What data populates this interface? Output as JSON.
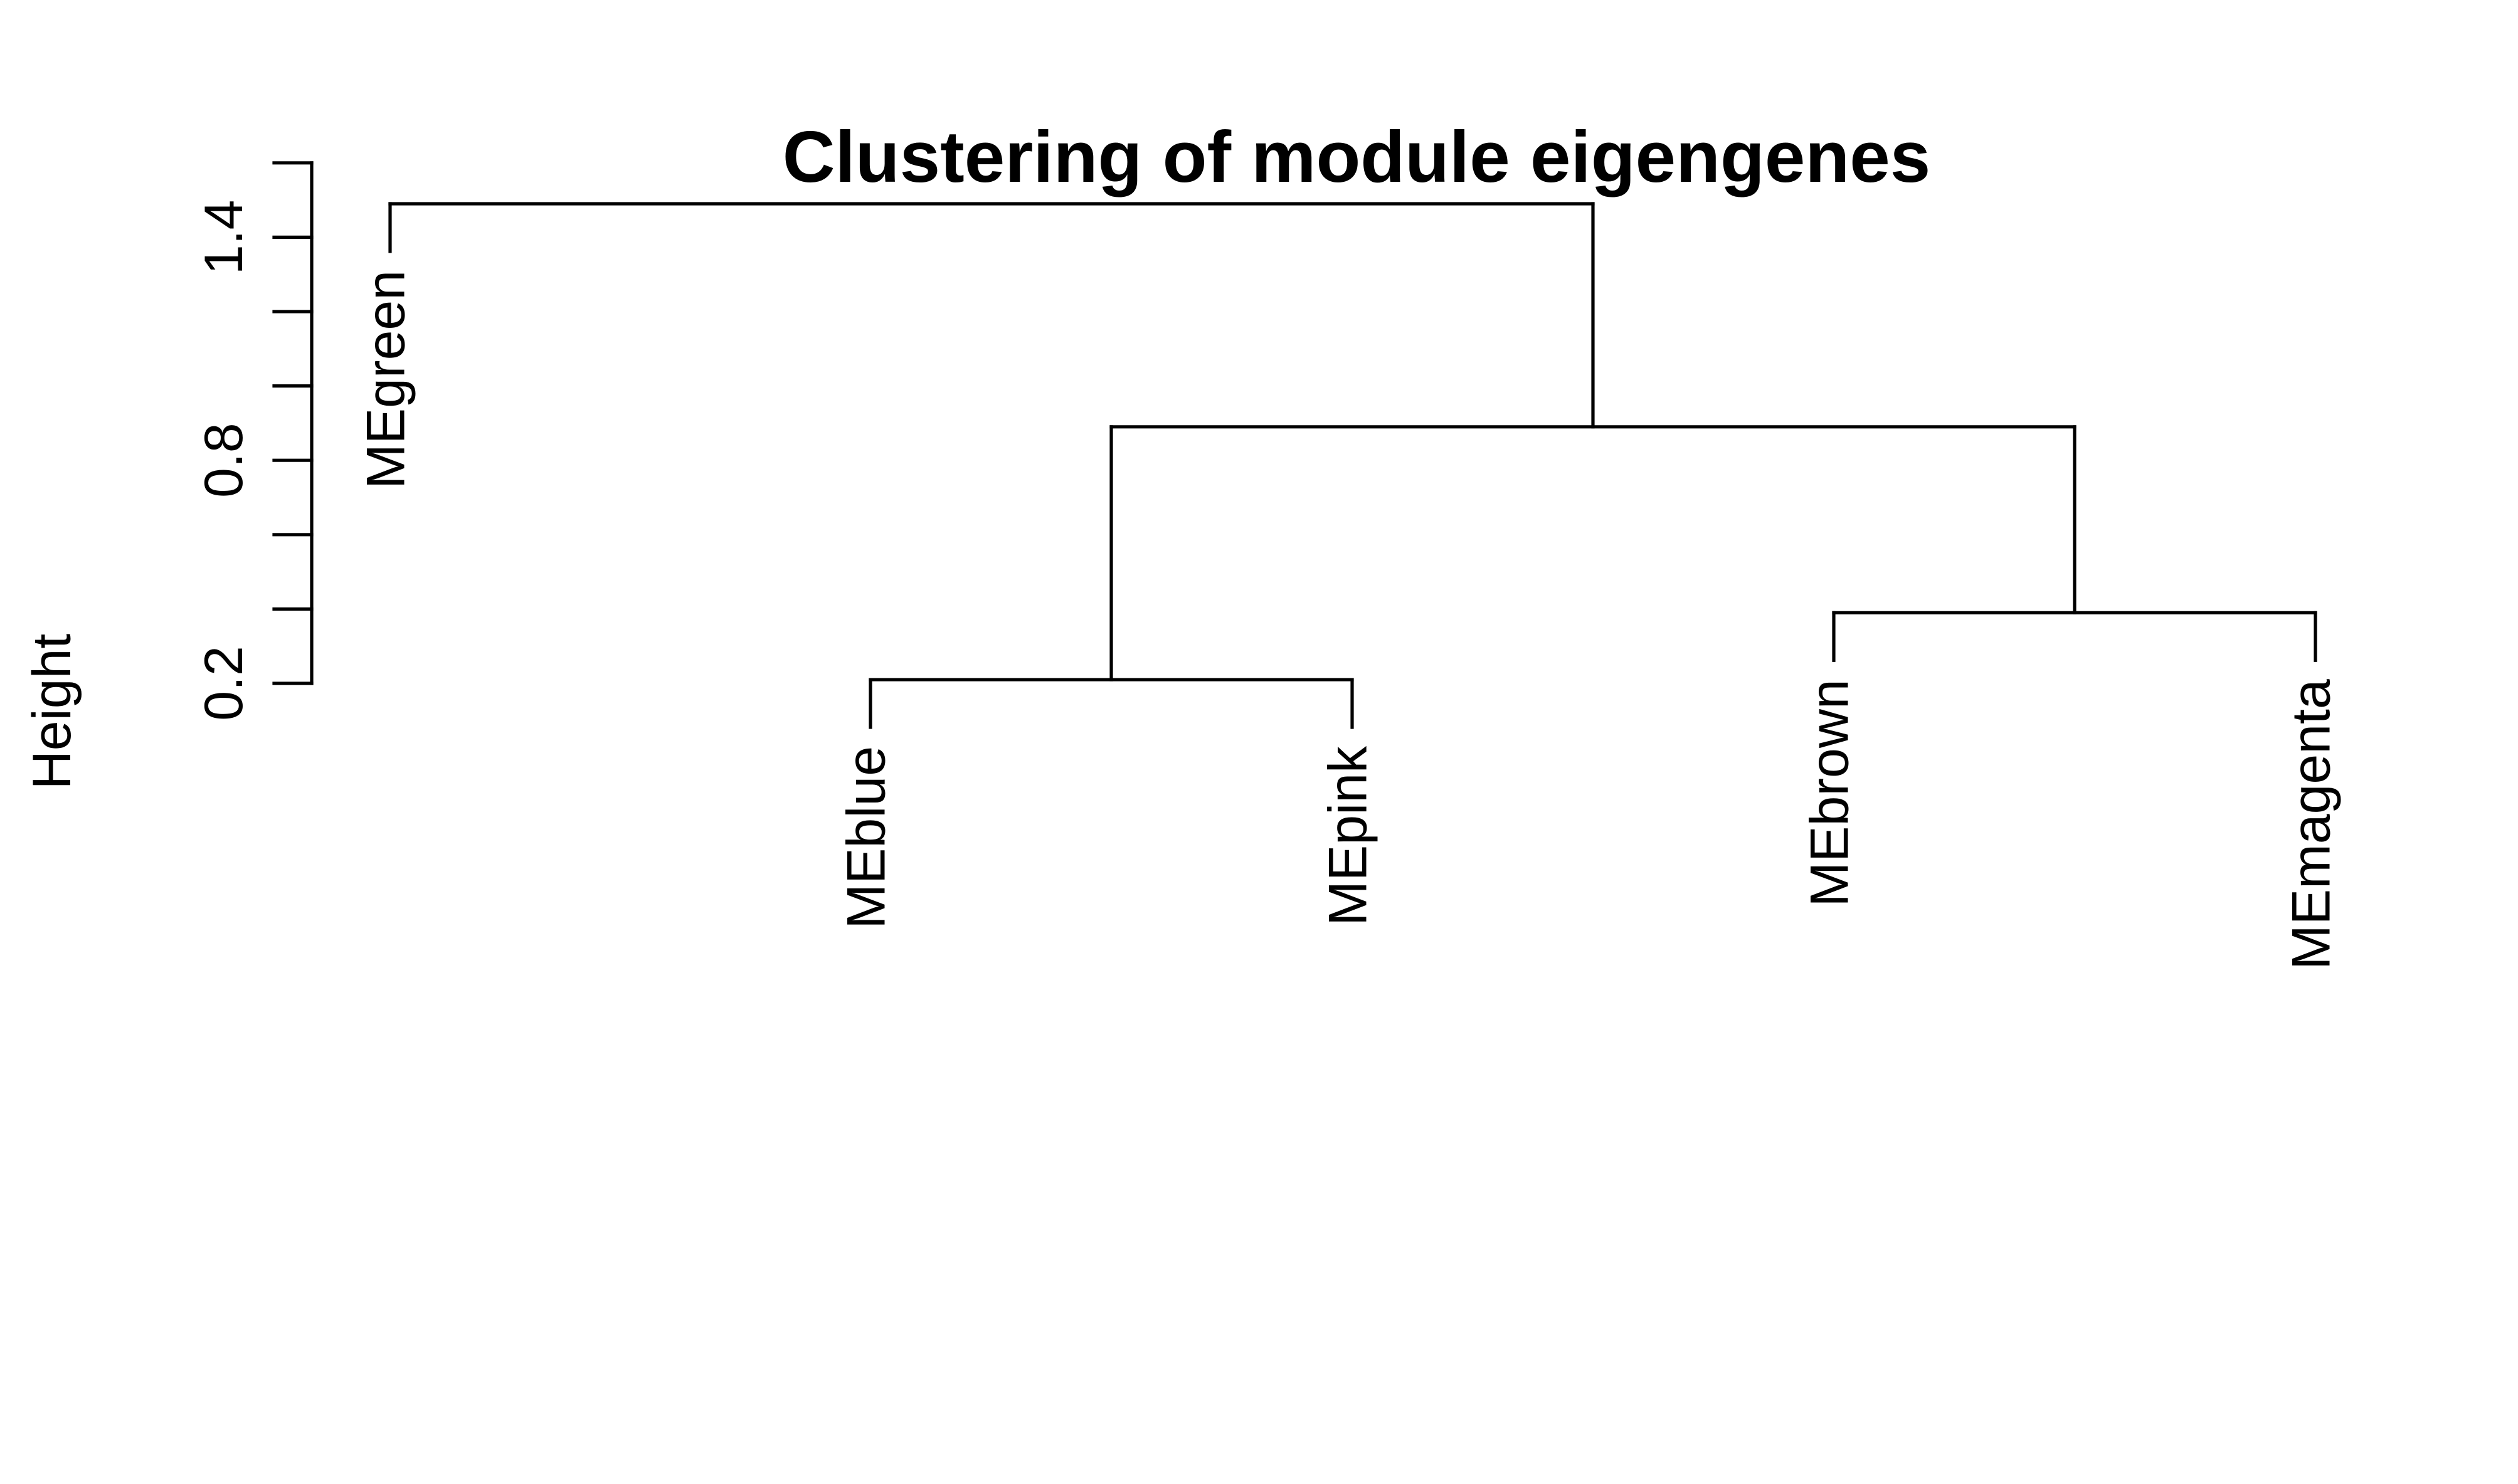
{
  "chart_data": {
    "type": "dendrogram",
    "title": "Clustering of module eigengenes",
    "xlabel": "",
    "ylabel": "Height",
    "ylim": [
      0.2,
      1.6
    ],
    "y_ticks": [
      0.2,
      0.8,
      1.4
    ],
    "y_minor_ticks": [
      0.2,
      0.4,
      0.6,
      0.8,
      1.0,
      1.2,
      1.4,
      1.6
    ],
    "grid": false,
    "leaves": [
      "MEgreen",
      "MEblue",
      "MEpink",
      "MEbrown",
      "MEmagenta"
    ],
    "merges": [
      {
        "id": "c1",
        "children": [
          "MEblue",
          "MEpink"
        ],
        "height": 0.21
      },
      {
        "id": "c2",
        "children": [
          "MEbrown",
          "MEmagenta"
        ],
        "height": 0.39
      },
      {
        "id": "c3",
        "children": [
          "c1",
          "c2"
        ],
        "height": 0.89
      },
      {
        "id": "c4",
        "children": [
          "MEgreen",
          "c3"
        ],
        "height": 1.49
      }
    ]
  }
}
